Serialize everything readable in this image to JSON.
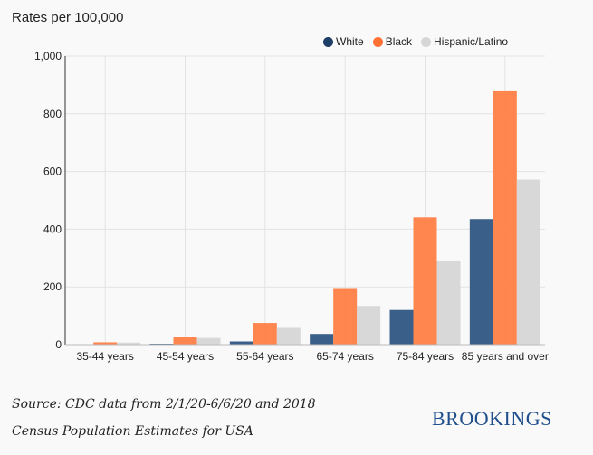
{
  "chart_data": {
    "type": "bar",
    "title": "Rates per 100,000",
    "xlabel": "",
    "ylabel": "",
    "ylim": [
      0,
      1000
    ],
    "yticks": [
      "0",
      "200",
      "400",
      "600",
      "800",
      "1,000"
    ],
    "ytick_values": [
      0,
      200,
      400,
      600,
      800,
      1000
    ],
    "grid": true,
    "legend_position": "top-right",
    "categories": [
      "35-44 years",
      "45-54 years",
      "55-64 years",
      "65-74 years",
      "75-84 years",
      "85 years and over"
    ],
    "series": [
      {
        "name": "White",
        "color": "#2f5783",
        "values": [
          1,
          3,
          11,
          37,
          120,
          435
        ]
      },
      {
        "name": "Black",
        "color": "#ff7f45",
        "values": [
          8,
          27,
          75,
          196,
          441,
          878
        ]
      },
      {
        "name": "Hispanic/Latino",
        "color": "#d6d6d6",
        "values": [
          7,
          23,
          58,
          134,
          289,
          572
        ]
      }
    ]
  },
  "source": {
    "line1": "Source: CDC data from 2/1/20-6/6/20 and 2018",
    "line2": "Census Population Estimates for USA"
  },
  "logo": "BROOKINGS"
}
